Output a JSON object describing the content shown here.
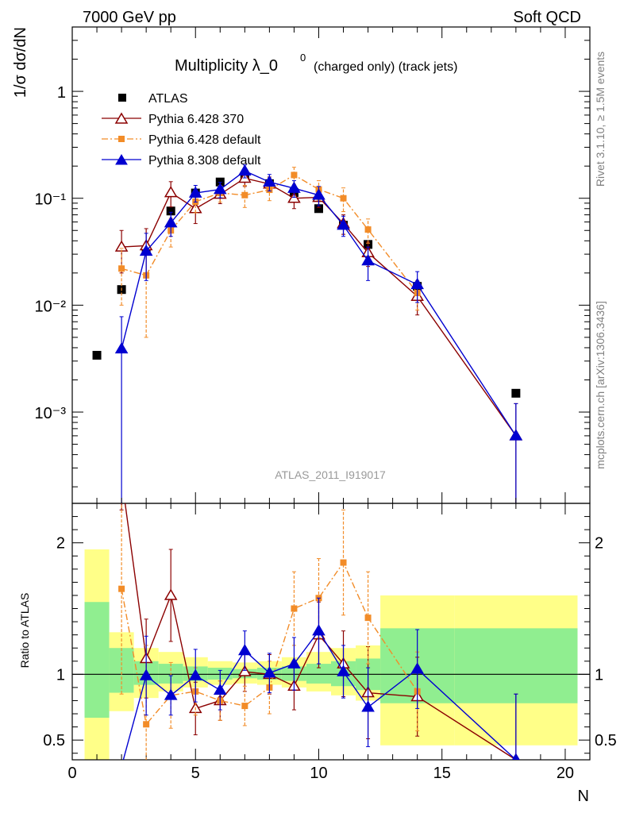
{
  "header": {
    "left": "7000 GeV pp",
    "right": "Soft QCD"
  },
  "side_text": {
    "rivet": "Rivet 3.1.10, ≥ 1.5M events",
    "site": "mcplots.cern.ch [arXiv:1306.3436]"
  },
  "analysis_label": "ATLAS_2011_I919017",
  "chart_data": [
    {
      "type": "scatter",
      "title": "Multiplicity λ_0",
      "title_sup": "0",
      "title_suffix": "(charged only) (track jets)",
      "xlabel": "N",
      "ylabel": "1/σ dσ/dN",
      "xlim": [
        0,
        21
      ],
      "ylim": [
        0.00014,
        4.0
      ],
      "yscale": "log",
      "y_tick_labels": [
        "10⁻³",
        "10⁻²",
        "10⁻¹",
        "1"
      ],
      "legend_position": "top-left",
      "x": [
        1,
        2,
        3,
        4,
        5,
        6,
        7,
        8,
        9,
        10,
        11,
        12,
        14,
        18
      ],
      "series": [
        {
          "name": "ATLAS",
          "color": "#000000",
          "marker": "filled-square",
          "values": [
            0.0034,
            0.014,
            0.032,
            0.076,
            0.112,
            0.142,
            0.155,
            0.137,
            0.113,
            0.08,
            0.056,
            0.037,
            0.015,
            0.0015
          ]
        },
        {
          "name": "Pythia 6.428 370",
          "color": "#8b0000",
          "marker": "open-triangle",
          "line": "solid",
          "x": [
            2,
            3,
            4,
            5,
            6,
            7,
            8,
            9,
            10,
            11,
            12,
            14,
            18
          ],
          "values": [
            0.035,
            0.036,
            0.113,
            0.08,
            0.109,
            0.154,
            0.136,
            0.1,
            0.102,
            0.058,
            0.031,
            0.0121,
            0.0006
          ],
          "errors": [
            0.015,
            0.016,
            0.03,
            0.022,
            0.02,
            0.025,
            0.022,
            0.02,
            0.02,
            0.012,
            0.008,
            0.004,
            0.0006
          ]
        },
        {
          "name": "Pythia 6.428 default",
          "color": "#f28c28",
          "marker": "filled-square",
          "line": "dash-dot",
          "x": [
            2,
            3,
            4,
            5,
            6,
            7,
            8,
            9,
            10,
            11,
            12,
            14
          ],
          "values": [
            0.022,
            0.019,
            0.05,
            0.093,
            0.112,
            0.107,
            0.12,
            0.165,
            0.121,
            0.1,
            0.051,
            0.013
          ],
          "errors": [
            0.012,
            0.014,
            0.015,
            0.02,
            0.02,
            0.025,
            0.025,
            0.03,
            0.025,
            0.025,
            0.013,
            0.004
          ]
        },
        {
          "name": "Pythia 8.308 default",
          "color": "#0000d0",
          "marker": "filled-triangle",
          "line": "solid",
          "x": [
            2,
            3,
            4,
            5,
            6,
            7,
            8,
            9,
            10,
            11,
            12,
            14,
            18
          ],
          "values": [
            0.0039,
            0.032,
            0.059,
            0.112,
            0.121,
            0.18,
            0.142,
            0.124,
            0.107,
            0.056,
            0.026,
            0.0156,
            0.0006
          ],
          "errors": [
            0.0039,
            0.015,
            0.015,
            0.02,
            0.02,
            0.025,
            0.025,
            0.022,
            0.022,
            0.012,
            0.009,
            0.005,
            0.0006
          ]
        }
      ]
    },
    {
      "type": "line",
      "ylabel": "Ratio to ATLAS",
      "xlabel": "N",
      "xlim": [
        0,
        21
      ],
      "ylim": [
        0.35,
        2.3
      ],
      "y_ticks": [
        0.5,
        1,
        2
      ],
      "x_ticks": [
        0,
        5,
        10,
        15,
        20
      ],
      "reference_line": 1,
      "bands": {
        "edges": [
          0.5,
          1.5,
          2.5,
          3.5,
          4.5,
          5.5,
          6.5,
          7.5,
          8.5,
          9.5,
          10.5,
          11.5,
          12.5,
          15.5,
          20.5
        ],
        "green_low": [
          0.67,
          0.86,
          0.92,
          0.93,
          0.95,
          0.96,
          0.97,
          0.96,
          0.95,
          0.93,
          0.91,
          0.88,
          0.78,
          0.78
        ],
        "green_high": [
          1.55,
          1.2,
          1.1,
          1.08,
          1.06,
          1.05,
          1.04,
          1.05,
          1.06,
          1.08,
          1.1,
          1.12,
          1.35,
          1.35
        ],
        "yellow_low": [
          0.3,
          0.72,
          0.82,
          0.87,
          0.9,
          0.92,
          0.93,
          0.92,
          0.9,
          0.87,
          0.84,
          0.8,
          0.46,
          0.46
        ],
        "yellow_high": [
          1.95,
          1.32,
          1.2,
          1.17,
          1.13,
          1.1,
          1.09,
          1.1,
          1.13,
          1.17,
          1.2,
          1.22,
          1.6,
          1.6
        ]
      },
      "series": [
        {
          "name": "Pythia 6.428 370",
          "color": "#8b0000",
          "x": [
            2,
            3,
            4,
            5,
            6,
            7,
            8,
            9,
            10,
            11,
            12,
            14,
            18
          ],
          "values": [
            2.5,
            1.12,
            1.6,
            0.74,
            0.8,
            1.02,
            1.0,
            0.91,
            1.3,
            1.08,
            0.86,
            0.83,
            0.35
          ],
          "errors": [
            0.25,
            0.3,
            0.35,
            0.2,
            0.15,
            0.15,
            0.15,
            0.18,
            0.25,
            0.25,
            0.35,
            0.3,
            0.5
          ]
        },
        {
          "name": "Pythia 6.428 default",
          "color": "#f28c28",
          "x": [
            2,
            3,
            4,
            5,
            6,
            7,
            8,
            9,
            10,
            11,
            12,
            14
          ],
          "values": [
            1.65,
            0.62,
            0.84,
            0.87,
            0.8,
            0.76,
            0.9,
            1.5,
            1.58,
            1.85,
            1.43,
            0.87
          ],
          "errors": [
            0.8,
            0.6,
            0.25,
            0.18,
            0.15,
            0.15,
            0.2,
            0.28,
            0.3,
            0.4,
            0.35,
            0.3
          ]
        },
        {
          "name": "Pythia 8.308 default",
          "color": "#0000d0",
          "x": [
            2,
            3,
            4,
            5,
            6,
            7,
            8,
            9,
            10,
            11,
            12,
            14,
            18
          ],
          "values": [
            0.3,
            0.99,
            0.84,
            0.99,
            0.88,
            1.18,
            1.01,
            1.08,
            1.33,
            1.02,
            0.75,
            1.04,
            0.35
          ],
          "errors": [
            0.0,
            0.3,
            0.15,
            0.2,
            0.15,
            0.15,
            0.15,
            0.2,
            0.25,
            0.2,
            0.3,
            0.3,
            0.5
          ]
        }
      ]
    }
  ]
}
